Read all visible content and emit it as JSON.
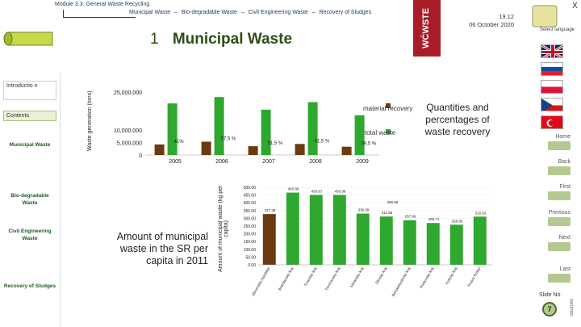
{
  "header": {
    "module": "Module 3.3.  General Waste Recycling",
    "nav": [
      "Municipal Waste",
      "–",
      "Bio-degradable Waste",
      "–",
      "Civil Engineering Waste",
      "–",
      "Recovery of Sludges"
    ],
    "date_line1": "19.12",
    "date_line2": "06 October 2020",
    "page_number": "1",
    "title": "Municipal Waste",
    "logo_text": "WĆWSTE"
  },
  "sidebar": {
    "items": [
      {
        "label": "Introductio n"
      },
      {
        "label": "Contents"
      },
      {
        "label": "Municipal Waste"
      },
      {
        "label": "Bio-degradable Waste"
      },
      {
        "label": "Civil Engineering Waste"
      },
      {
        "label": "Recovery of Sludges"
      }
    ]
  },
  "right_nav": {
    "close": "X",
    "language_label": "Select language",
    "buttons": [
      "Home",
      "Back",
      "First",
      "Previous",
      "Next",
      "Last"
    ],
    "slide_no_label": "Slide No",
    "slide_no": "7",
    "sources": "Sources"
  },
  "panel_text": {
    "quantities": "Quantities and percentages of waste recovery",
    "legend_material": "material recovery",
    "legend_total": "total waste",
    "caption": "Amount of municipal waste in the SR per capita in 2011"
  },
  "chart_data": [
    {
      "type": "bar",
      "categories": [
        "2005",
        "2006",
        "2007",
        "2008",
        "2009"
      ],
      "series": [
        {
          "name": "material recovery",
          "values": [
            4200000,
            5300000,
            3500000,
            4400000,
            3300000
          ],
          "color": "#6b3a10"
        },
        {
          "name": "total waste",
          "values": [
            20500000,
            23000000,
            18000000,
            21000000,
            15800000
          ],
          "color": "#2ea82e"
        }
      ],
      "data_labels": [
        "41%",
        "57,5 %",
        "51,5 %",
        "41,5 %",
        "59,5 %"
      ],
      "ylabel": "Waste generation (tons)",
      "yticks": [
        "0",
        "5,000,000",
        "10,000,000",
        "25,000,000"
      ],
      "ylim": [
        0,
        25000000
      ]
    },
    {
      "type": "bar",
      "categories": [
        "Slovenská republika",
        "Bratislavský kraj",
        "Trnavský kraj",
        "Trenčiansky kraj",
        "Nitriansky kraj",
        "Žilinský kraj",
        "Banskobystrický kraj",
        "Prešovský kraj",
        "Košický kraj",
        "Trnava Rusko"
      ],
      "values": [
        327.39,
        465.86,
        450.87,
        450.99,
        330.38,
        311.58,
        287.89,
        269.71,
        258.95,
        310.93
      ],
      "value_labels": [
        "327.39",
        "465.86",
        "450.87",
        "450.99",
        "330.38",
        "311.58",
        "287.89",
        "269.71",
        "258.95",
        "310.93"
      ],
      "extra_label": "396.95",
      "ylabel": "Amount of municipal waste (kg per capita)",
      "yticks": [
        "0.00",
        "50.00",
        "100.00",
        "150.00",
        "200.00",
        "250.00",
        "300.00",
        "350.00",
        "400.00",
        "450.00",
        "500.00"
      ],
      "ylim": [
        0,
        500
      ],
      "color": "#2ea82e",
      "highlight_color": "#6b3a10"
    }
  ]
}
